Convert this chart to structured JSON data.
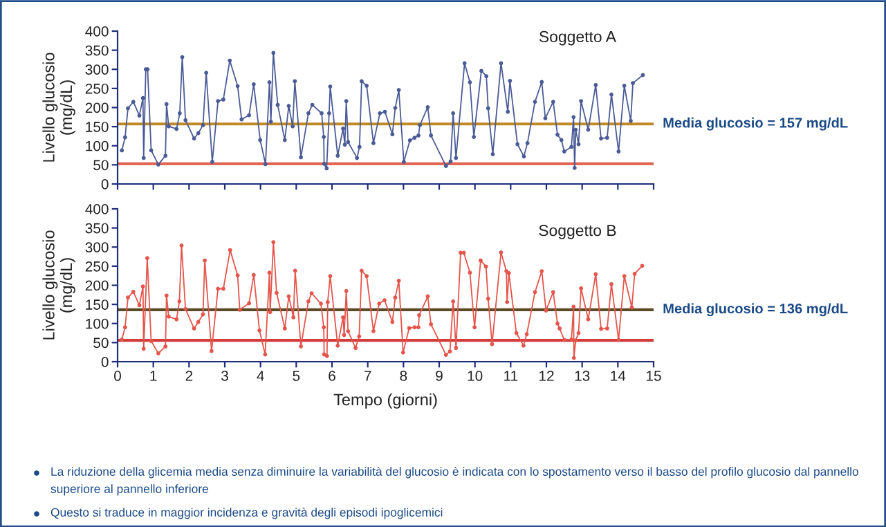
{
  "chart_data": [
    {
      "type": "line",
      "title": "Soggetto A",
      "ylabel": "Livello glucosio\n(mg/dL)",
      "x": [
        0.12,
        0.21,
        0.29,
        0.44,
        0.61,
        0.71,
        0.73,
        0.79,
        0.84,
        0.94,
        1.14,
        1.34,
        1.37,
        1.43,
        1.65,
        1.74,
        1.81,
        1.9,
        2.14,
        2.26,
        2.39,
        2.48,
        2.65,
        2.81,
        2.96,
        3.14,
        3.36,
        3.47,
        3.68,
        3.81,
        3.99,
        4.14,
        4.25,
        4.29,
        4.36,
        4.48,
        4.68,
        4.79,
        4.9,
        4.96,
        5.13,
        5.34,
        5.45,
        5.71,
        5.77,
        5.78,
        5.85,
        5.92,
        5.95,
        6.16,
        6.31,
        6.36,
        6.4,
        6.45,
        6.7,
        6.77,
        6.83,
        6.97,
        7.16,
        7.34,
        7.48,
        7.69,
        7.77,
        7.87,
        8.01,
        8.18,
        8.31,
        8.42,
        8.46,
        8.68,
        8.77,
        9.19,
        9.32,
        9.39,
        9.47,
        9.71,
        9.86,
        9.97,
        10.18,
        10.32,
        10.37,
        10.5,
        10.73,
        10.92,
        10.98,
        11.19,
        11.37,
        11.47,
        11.68,
        11.87,
        11.97,
        12.19,
        12.31,
        12.42,
        12.5,
        12.7,
        12.76,
        12.79,
        12.82,
        12.9,
        12.97,
        13.17,
        13.38,
        13.53,
        13.7,
        13.82,
        14.02,
        14.18,
        14.36,
        14.42,
        14.7
      ],
      "series": [
        {
          "color": "#4b5b96",
          "values": [
            88,
            122,
            198,
            215,
            179,
            225,
            68,
            300,
            300,
            88,
            51,
            74,
            209,
            151,
            144,
            185,
            332,
            167,
            119,
            133,
            154,
            291,
            58,
            217,
            221,
            323,
            256,
            169,
            180,
            261,
            115,
            52,
            266,
            163,
            343,
            207,
            115,
            204,
            151,
            269,
            70,
            185,
            207,
            185,
            123,
            53,
            41,
            185,
            255,
            74,
            145,
            103,
            217,
            110,
            68,
            97,
            269,
            257,
            107,
            185,
            189,
            130,
            199,
            246,
            58,
            114,
            121,
            127,
            154,
            201,
            127,
            47,
            59,
            185,
            68,
            316,
            266,
            123,
            296,
            282,
            198,
            78,
            316,
            189,
            270,
            104,
            72,
            107,
            215,
            267,
            172,
            215,
            129,
            115,
            85,
            97,
            175,
            42,
            142,
            104,
            217,
            142,
            259,
            119,
            121,
            234,
            85,
            257,
            165,
            264,
            285
          ]
        }
      ],
      "xlim": [
        0,
        15
      ],
      "xticks": [
        0,
        1,
        2,
        3,
        4,
        5,
        6,
        7,
        8,
        9,
        10,
        11,
        12,
        13,
        14,
        15
      ],
      "ylim": [
        0,
        400
      ],
      "yticks": [
        0,
        50,
        100,
        150,
        200,
        250,
        300,
        350,
        400
      ],
      "tick_labels": "y",
      "marker": "circle",
      "line_style": "solid",
      "ref_lines": [
        {
          "axis": "y",
          "value": 157,
          "label": "Media glucosio = 157 mg/dL",
          "color": "#c08a2a"
        },
        {
          "axis": "y",
          "value": 53,
          "color": "#e2604c"
        }
      ]
    },
    {
      "type": "line",
      "title": "Soggetto B",
      "ylabel": "Livello glucosio\n(mg/dL)",
      "xlabel": "Tempo (giorni)",
      "x": [
        0.12,
        0.21,
        0.29,
        0.44,
        0.61,
        0.71,
        0.73,
        0.83,
        0.94,
        1.14,
        1.34,
        1.37,
        1.43,
        1.65,
        1.73,
        1.79,
        1.9,
        2.14,
        2.26,
        2.39,
        2.44,
        2.63,
        2.81,
        2.96,
        3.15,
        3.36,
        3.42,
        3.68,
        3.81,
        3.97,
        4.13,
        4.25,
        4.27,
        4.36,
        4.45,
        4.68,
        4.79,
        4.92,
        4.97,
        5.13,
        5.34,
        5.43,
        5.69,
        5.77,
        5.78,
        5.86,
        5.88,
        5.95,
        6.16,
        6.31,
        6.34,
        6.4,
        6.45,
        6.66,
        6.76,
        6.83,
        6.97,
        7.16,
        7.32,
        7.47,
        7.69,
        7.77,
        7.87,
        7.99,
        8.16,
        8.31,
        8.42,
        8.44,
        8.68,
        8.77,
        9.19,
        9.3,
        9.39,
        9.47,
        9.6,
        9.69,
        9.86,
        9.99,
        10.16,
        10.31,
        10.37,
        10.48,
        10.73,
        10.88,
        10.9,
        10.95,
        11.16,
        11.36,
        11.45,
        11.68,
        11.87,
        11.99,
        12.19,
        12.31,
        12.37,
        12.5,
        12.7,
        12.76,
        12.77,
        12.82,
        12.9,
        12.97,
        13.17,
        13.38,
        13.53,
        13.7,
        13.82,
        14.02,
        14.18,
        14.39,
        14.47,
        14.68
      ],
      "series": [
        {
          "color": "#e4554c",
          "values": [
            58,
            90,
            168,
            183,
            148,
            197,
            34,
            271,
            54,
            22,
            40,
            173,
            118,
            111,
            158,
            304,
            138,
            87,
            104,
            124,
            265,
            28,
            191,
            191,
            292,
            226,
            136,
            153,
            227,
            82,
            19,
            233,
            130,
            313,
            180,
            87,
            171,
            116,
            238,
            40,
            158,
            179,
            152,
            90,
            19,
            15,
            156,
            224,
            42,
            116,
            70,
            185,
            80,
            36,
            66,
            238,
            224,
            80,
            152,
            161,
            104,
            168,
            212,
            24,
            88,
            90,
            90,
            122,
            171,
            98,
            18,
            27,
            158,
            36,
            285,
            285,
            233,
            90,
            265,
            249,
            165,
            46,
            286,
            237,
            156,
            232,
            75,
            42,
            72,
            182,
            237,
            134,
            182,
            100,
            87,
            57,
            58,
            144,
            10,
            56,
            75,
            192,
            111,
            229,
            86,
            87,
            203,
            57,
            224,
            142,
            230,
            251
          ]
        }
      ],
      "xlim": [
        0,
        15
      ],
      "xticks": [
        0,
        1,
        2,
        3,
        4,
        5,
        6,
        7,
        8,
        9,
        10,
        11,
        12,
        13,
        14,
        15
      ],
      "ylim": [
        0,
        400
      ],
      "yticks": [
        0,
        50,
        100,
        150,
        200,
        250,
        300,
        350,
        400
      ],
      "marker": "circle",
      "line_style": "solid",
      "ref_lines": [
        {
          "axis": "y",
          "value": 136,
          "label": "Media glucosio = 136 mg/dL",
          "color": "#5c4a26"
        },
        {
          "axis": "y",
          "value": 56,
          "color": "#d23c3c"
        }
      ],
      "annotations": [
        "La riduzione della glicemia media senza diminuire la variabilità del glucosio è indicata con lo spostamento verso il basso del profilo glucosio dal pannello superiore al pannello inferiore",
        "Questo si traduce in maggior incidenza e gravità degli episodi ipoglicemici"
      ]
    }
  ]
}
